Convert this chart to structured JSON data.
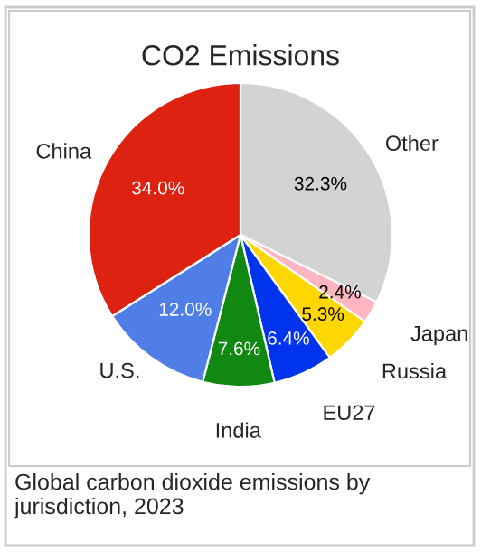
{
  "chart_data": {
    "type": "pie",
    "title": "CO2 Emissions",
    "categories": [
      "Other",
      "Japan",
      "Russia",
      "EU27",
      "India",
      "U.S.",
      "China"
    ],
    "values": [
      32.3,
      2.4,
      5.3,
      6.4,
      7.6,
      12.0,
      34.0
    ],
    "value_labels": [
      "32.3%",
      "2.4%",
      "5.3%",
      "6.4%",
      "7.6%",
      "12.0%",
      "34.0%"
    ],
    "colors": [
      "#d3d3d3",
      "#ffb6c1",
      "#ffd700",
      "#0033ee",
      "#118811",
      "#4f7ee6",
      "#dd2211"
    ],
    "annotations": [
      "Global carbon dioxide emissions by jurisdiction, 2023"
    ]
  }
}
